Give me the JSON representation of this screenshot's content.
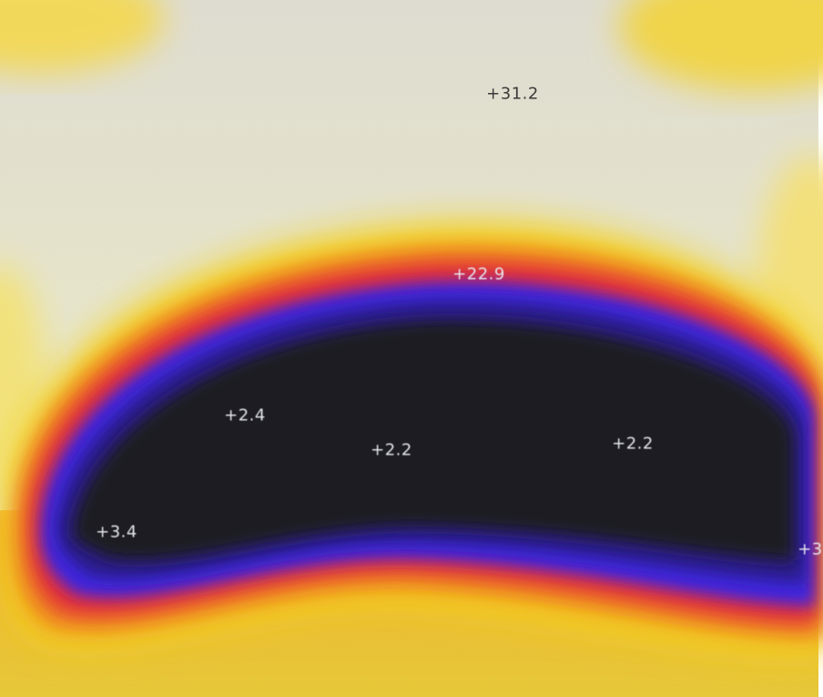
{
  "image": {
    "kind": "thermal-heatmap",
    "palette": [
      "#1c1c24",
      "#2a1a8a",
      "#3c28e0",
      "#e0283c",
      "#f08a1e",
      "#f4d21c",
      "#f6f19a",
      "#dcdcd2"
    ]
  },
  "readouts": [
    {
      "id": "r1",
      "text": "+31.2"
    },
    {
      "id": "r2",
      "text": "+22.9"
    },
    {
      "id": "r3",
      "text": "+2.4"
    },
    {
      "id": "r4",
      "text": "+2.2"
    },
    {
      "id": "r5",
      "text": "+2.2"
    },
    {
      "id": "r6",
      "text": "+3.4"
    },
    {
      "id": "r7",
      "text": "+3"
    }
  ]
}
